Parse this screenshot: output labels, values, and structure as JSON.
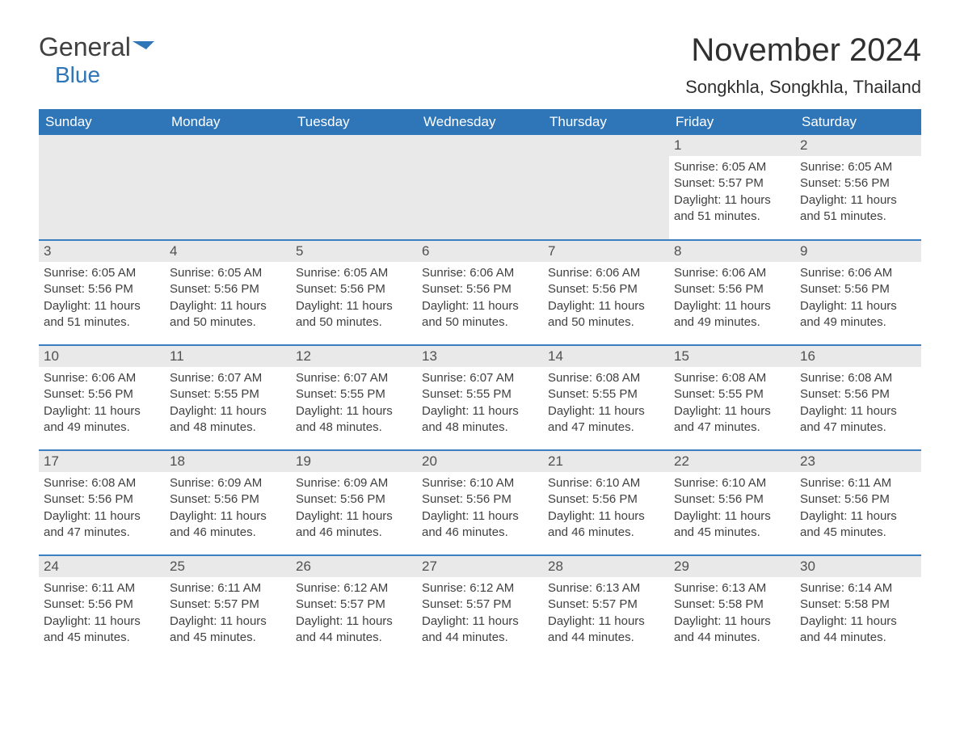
{
  "logo": {
    "general": "General",
    "blue": "Blue"
  },
  "title": "November 2024",
  "location": "Songkhla, Songkhla, Thailand",
  "columns": [
    "Sunday",
    "Monday",
    "Tuesday",
    "Wednesday",
    "Thursday",
    "Friday",
    "Saturday"
  ],
  "colors": {
    "header_bg": "#2f76b8",
    "header_fg": "#ffffff",
    "row_divider": "#3b7fc0",
    "daynum_bg": "#e9e9e9",
    "text": "#404040",
    "logo_blue": "#2f76b8",
    "background": "#ffffff"
  },
  "weeks": [
    [
      null,
      null,
      null,
      null,
      null,
      {
        "n": 1,
        "sr": "6:05 AM",
        "ss": "5:57 PM",
        "dl": "11 hours and 51 minutes."
      },
      {
        "n": 2,
        "sr": "6:05 AM",
        "ss": "5:56 PM",
        "dl": "11 hours and 51 minutes."
      }
    ],
    [
      {
        "n": 3,
        "sr": "6:05 AM",
        "ss": "5:56 PM",
        "dl": "11 hours and 51 minutes."
      },
      {
        "n": 4,
        "sr": "6:05 AM",
        "ss": "5:56 PM",
        "dl": "11 hours and 50 minutes."
      },
      {
        "n": 5,
        "sr": "6:05 AM",
        "ss": "5:56 PM",
        "dl": "11 hours and 50 minutes."
      },
      {
        "n": 6,
        "sr": "6:06 AM",
        "ss": "5:56 PM",
        "dl": "11 hours and 50 minutes."
      },
      {
        "n": 7,
        "sr": "6:06 AM",
        "ss": "5:56 PM",
        "dl": "11 hours and 50 minutes."
      },
      {
        "n": 8,
        "sr": "6:06 AM",
        "ss": "5:56 PM",
        "dl": "11 hours and 49 minutes."
      },
      {
        "n": 9,
        "sr": "6:06 AM",
        "ss": "5:56 PM",
        "dl": "11 hours and 49 minutes."
      }
    ],
    [
      {
        "n": 10,
        "sr": "6:06 AM",
        "ss": "5:56 PM",
        "dl": "11 hours and 49 minutes."
      },
      {
        "n": 11,
        "sr": "6:07 AM",
        "ss": "5:55 PM",
        "dl": "11 hours and 48 minutes."
      },
      {
        "n": 12,
        "sr": "6:07 AM",
        "ss": "5:55 PM",
        "dl": "11 hours and 48 minutes."
      },
      {
        "n": 13,
        "sr": "6:07 AM",
        "ss": "5:55 PM",
        "dl": "11 hours and 48 minutes."
      },
      {
        "n": 14,
        "sr": "6:08 AM",
        "ss": "5:55 PM",
        "dl": "11 hours and 47 minutes."
      },
      {
        "n": 15,
        "sr": "6:08 AM",
        "ss": "5:55 PM",
        "dl": "11 hours and 47 minutes."
      },
      {
        "n": 16,
        "sr": "6:08 AM",
        "ss": "5:56 PM",
        "dl": "11 hours and 47 minutes."
      }
    ],
    [
      {
        "n": 17,
        "sr": "6:08 AM",
        "ss": "5:56 PM",
        "dl": "11 hours and 47 minutes."
      },
      {
        "n": 18,
        "sr": "6:09 AM",
        "ss": "5:56 PM",
        "dl": "11 hours and 46 minutes."
      },
      {
        "n": 19,
        "sr": "6:09 AM",
        "ss": "5:56 PM",
        "dl": "11 hours and 46 minutes."
      },
      {
        "n": 20,
        "sr": "6:10 AM",
        "ss": "5:56 PM",
        "dl": "11 hours and 46 minutes."
      },
      {
        "n": 21,
        "sr": "6:10 AM",
        "ss": "5:56 PM",
        "dl": "11 hours and 46 minutes."
      },
      {
        "n": 22,
        "sr": "6:10 AM",
        "ss": "5:56 PM",
        "dl": "11 hours and 45 minutes."
      },
      {
        "n": 23,
        "sr": "6:11 AM",
        "ss": "5:56 PM",
        "dl": "11 hours and 45 minutes."
      }
    ],
    [
      {
        "n": 24,
        "sr": "6:11 AM",
        "ss": "5:56 PM",
        "dl": "11 hours and 45 minutes."
      },
      {
        "n": 25,
        "sr": "6:11 AM",
        "ss": "5:57 PM",
        "dl": "11 hours and 45 minutes."
      },
      {
        "n": 26,
        "sr": "6:12 AM",
        "ss": "5:57 PM",
        "dl": "11 hours and 44 minutes."
      },
      {
        "n": 27,
        "sr": "6:12 AM",
        "ss": "5:57 PM",
        "dl": "11 hours and 44 minutes."
      },
      {
        "n": 28,
        "sr": "6:13 AM",
        "ss": "5:57 PM",
        "dl": "11 hours and 44 minutes."
      },
      {
        "n": 29,
        "sr": "6:13 AM",
        "ss": "5:58 PM",
        "dl": "11 hours and 44 minutes."
      },
      {
        "n": 30,
        "sr": "6:14 AM",
        "ss": "5:58 PM",
        "dl": "11 hours and 44 minutes."
      }
    ]
  ],
  "labels": {
    "sunrise": "Sunrise: ",
    "sunset": "Sunset: ",
    "daylight": "Daylight: "
  }
}
